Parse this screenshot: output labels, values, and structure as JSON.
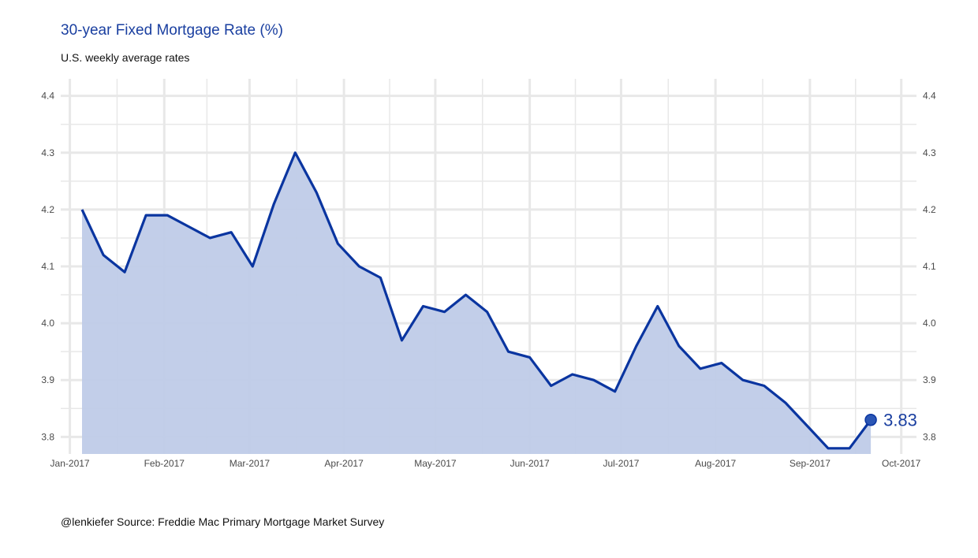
{
  "chart_data": {
    "type": "area",
    "title": "30-year Fixed Mortgage Rate (%)",
    "subtitle": "U.S. weekly average rates",
    "caption": "@lenkiefer Source: Freddie Mac Primary Mortgage Market Survey",
    "xlabel": "",
    "ylabel": "",
    "x_ticks": [
      "2017-01-01",
      "2017-02-01",
      "2017-03-01",
      "2017-04-01",
      "2017-05-01",
      "2017-06-01",
      "2017-07-01",
      "2017-08-01",
      "2017-09-01",
      "2017-10-01"
    ],
    "x_tick_labels": [
      "Jan-2017",
      "Feb-2017",
      "Mar-2017",
      "Apr-2017",
      "May-2017",
      "Jun-2017",
      "Jul-2017",
      "Aug-2017",
      "Sep-2017",
      "Oct-2017"
    ],
    "y_ticks": [
      3.8,
      3.9,
      4.0,
      4.1,
      4.2,
      4.3,
      4.4
    ],
    "y_tick_labels": [
      "3.8",
      "3.9",
      "4.0",
      "4.1",
      "4.2",
      "4.3",
      "4.4"
    ],
    "xlim": [
      "2016-12-29",
      "2017-10-06"
    ],
    "ylim": [
      3.77,
      4.43
    ],
    "grid": true,
    "secondary_y_axis": true,
    "series": [
      {
        "x": [
          "2017-01-05",
          "2017-01-12",
          "2017-01-19",
          "2017-01-26",
          "2017-02-02",
          "2017-02-09",
          "2017-02-16",
          "2017-02-23",
          "2017-03-02",
          "2017-03-09",
          "2017-03-16",
          "2017-03-23",
          "2017-03-30",
          "2017-04-06",
          "2017-04-13",
          "2017-04-20",
          "2017-04-27",
          "2017-05-04",
          "2017-05-11",
          "2017-05-18",
          "2017-05-25",
          "2017-06-01",
          "2017-06-08",
          "2017-06-15",
          "2017-06-22",
          "2017-06-29",
          "2017-07-06",
          "2017-07-13",
          "2017-07-20",
          "2017-07-27",
          "2017-08-03",
          "2017-08-10",
          "2017-08-17",
          "2017-08-24",
          "2017-08-31",
          "2017-09-07",
          "2017-09-14",
          "2017-09-21"
        ],
        "values": [
          4.2,
          4.12,
          4.09,
          4.19,
          4.19,
          4.17,
          4.15,
          4.16,
          4.1,
          4.21,
          4.3,
          4.23,
          4.14,
          4.1,
          4.08,
          3.97,
          4.03,
          4.02,
          4.05,
          4.02,
          3.95,
          3.94,
          3.89,
          3.91,
          3.9,
          3.88,
          3.96,
          4.03,
          3.96,
          3.92,
          3.93,
          3.9,
          3.89,
          3.86,
          3.82,
          3.78,
          3.78,
          3.83
        ]
      }
    ],
    "end_label": "3.83",
    "colors": {
      "line": "#0a35a0",
      "area": "#bfcbe8",
      "grid": "#e8e8e8",
      "point": "#2b56b5"
    }
  }
}
